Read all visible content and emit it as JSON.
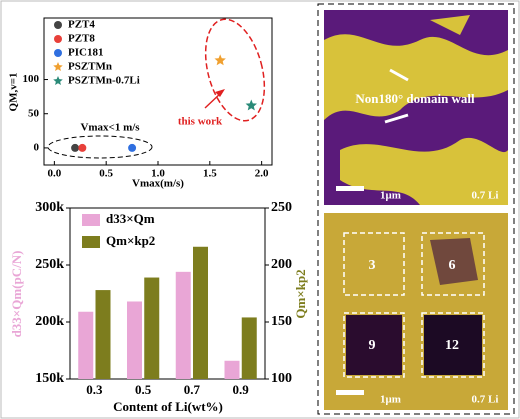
{
  "chart_data": [
    {
      "type": "scatter",
      "xlabel": "Vmax(m/s)",
      "ylabel": "QM,v=1",
      "xlim": [
        -0.1,
        2.1
      ],
      "ylim": [
        -25,
        190
      ],
      "xticks": [
        {
          "value": 0,
          "label": "0.0"
        },
        0.5,
        {
          "value": 1,
          "label": "1.0"
        },
        1.5,
        {
          "value": 2,
          "label": "2.0"
        }
      ],
      "yticks": [
        0,
        50,
        100
      ],
      "legend": "upper left",
      "annotations": [
        "Vmax<1 m/s",
        "this work"
      ],
      "series": [
        {
          "name": "PZT4",
          "color": "#444444",
          "marker": "circle",
          "x": [
            0.2
          ],
          "values": [
            0
          ]
        },
        {
          "name": "PZT8",
          "color": "#e8403a",
          "marker": "circle",
          "x": [
            0.27
          ],
          "values": [
            0
          ]
        },
        {
          "name": "PIC181",
          "color": "#2f6fe0",
          "marker": "circle",
          "x": [
            0.75
          ],
          "values": [
            0
          ]
        },
        {
          "name": "PSZTMn",
          "color": "#f0a030",
          "marker": "star",
          "x": [
            1.6
          ],
          "values": [
            128
          ]
        },
        {
          "name": "PSZTMn-0.7Li",
          "color": "#2a8a78",
          "marker": "star",
          "x": [
            1.9
          ],
          "values": [
            62
          ]
        }
      ]
    },
    {
      "type": "bar",
      "xlabel": "Content of Li(wt%)",
      "ylabel": "d33×Qm(pC/N)",
      "y2label": "Qm×kp2",
      "categories": [
        "0.3",
        "0.5",
        "0.7",
        "0.9"
      ],
      "ylim": [
        150000,
        300000
      ],
      "yticks": [
        {
          "value": 150000,
          "label": "150k"
        },
        {
          "value": 200000,
          "label": "200k"
        },
        {
          "value": 250000,
          "label": "250k"
        },
        {
          "value": 300000,
          "label": "300k"
        }
      ],
      "y2lim": [
        100,
        250
      ],
      "y2ticks": [
        100,
        150,
        200,
        250
      ],
      "legend": "upper left",
      "series": [
        {
          "name": "d33×Qm",
          "color": "#e9a6d6",
          "values": [
            209000,
            218000,
            244000,
            166000
          ]
        },
        {
          "name": "Qm×kp2",
          "color": "#7d7d1e",
          "axis": "y2",
          "values": [
            178,
            189,
            216,
            154
          ]
        }
      ]
    }
  ],
  "images": {
    "top": {
      "label": "Non180° domain wall",
      "scale": "1μm",
      "sample": "0.7 Li"
    },
    "bottom": {
      "regions": [
        "3",
        "6",
        "9",
        "12"
      ],
      "scale": "1μm",
      "sample": "0.7 Li"
    }
  }
}
